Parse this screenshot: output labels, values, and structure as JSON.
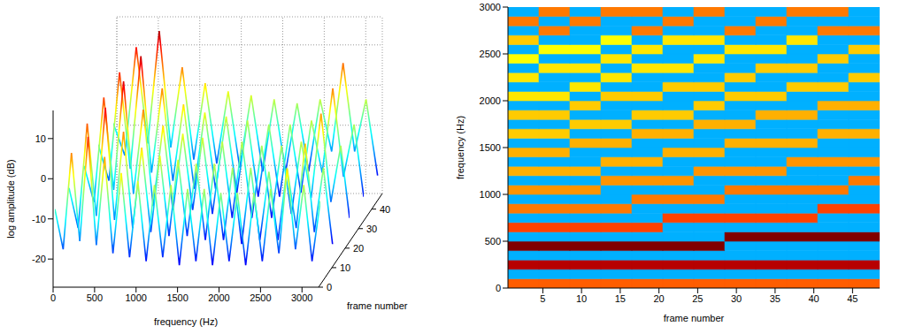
{
  "chart_data": [
    {
      "type": "waterfall",
      "xlabel": "frequency (Hz)",
      "ylabel": "log amplitude (dB)",
      "zlabel": "frame number",
      "xlim": [
        0,
        3200
      ],
      "xticks": [
        0,
        500,
        1000,
        1500,
        2000,
        2500,
        3000
      ],
      "ylim": [
        -27,
        17
      ],
      "yticks": [
        -20,
        -10,
        0,
        10
      ],
      "zlim": [
        0,
        48
      ],
      "zticks": [
        0,
        10,
        20,
        30,
        40
      ],
      "grid": true,
      "series": [
        {
          "frame": 1,
          "x": [
            0,
            100,
            200,
            300,
            400,
            500,
            600,
            700,
            800,
            900,
            1000,
            1100,
            1200,
            1300,
            1400,
            1500,
            1600,
            1700,
            1800,
            1900,
            2000,
            2100,
            2200,
            2300,
            2400,
            2500,
            2600,
            2700,
            2800,
            2900,
            3000,
            3100,
            3200
          ],
          "values": [
            -8,
            -18,
            6,
            -16,
            10,
            -17,
            5,
            -19,
            1,
            -20,
            -1,
            -21,
            -2,
            -20,
            -2,
            -22,
            -3,
            -21,
            -3,
            -22,
            -4,
            -21,
            -4,
            -22,
            -4,
            -21,
            -3,
            -19,
            2,
            -18,
            -2,
            -21,
            -6
          ]
        },
        {
          "frame": 12,
          "x": [
            0,
            110,
            219,
            329,
            438,
            548,
            657,
            767,
            876,
            986,
            1095,
            1205,
            1314,
            1424,
            1533,
            1643,
            1752,
            1862,
            1971,
            2081,
            2190,
            2300,
            2409,
            2519,
            2628,
            2738,
            2847,
            2957,
            3066,
            3176
          ],
          "values": [
            -8,
            -18,
            8,
            -15,
            12,
            -16,
            6,
            -18,
            2,
            -19,
            0,
            -20,
            -1,
            -20,
            -2,
            -21,
            -2,
            -21,
            -3,
            -22,
            -3,
            -21,
            -4,
            -21,
            -3,
            -18,
            3,
            -19,
            -3,
            -22
          ]
        },
        {
          "frame": 23,
          "x": [
            0,
            119,
            238,
            357,
            476,
            595,
            714,
            833,
            952,
            1071,
            1190,
            1309,
            1428,
            1547,
            1666,
            1785,
            1904,
            2023,
            2142,
            2261,
            2380,
            2499,
            2618,
            2737,
            2856,
            2975,
            3094,
            3200
          ],
          "values": [
            -8,
            -17,
            9,
            -14,
            13,
            -15,
            6,
            -18,
            2,
            -19,
            0,
            -19,
            -1,
            -20,
            -2,
            -21,
            -2,
            -21,
            -3,
            -21,
            -3,
            -20,
            -2,
            -16,
            5,
            -17,
            -3,
            -21
          ]
        },
        {
          "frame": 34,
          "x": [
            0,
            129,
            257,
            386,
            514,
            643,
            771,
            900,
            1028,
            1157,
            1285,
            1414,
            1542,
            1671,
            1799,
            1928,
            2056,
            2185,
            2313,
            2442,
            2570,
            2699,
            2827,
            2956,
            3084,
            3200
          ],
          "values": [
            -8,
            -17,
            10,
            -14,
            14,
            -15,
            6,
            -17,
            2,
            -19,
            0,
            -19,
            -1,
            -20,
            -2,
            -21,
            -3,
            -21,
            -3,
            -20,
            -2,
            -15,
            6,
            -16,
            -3,
            -21
          ]
        },
        {
          "frame": 45,
          "x": [
            0,
            139,
            277,
            416,
            554,
            693,
            831,
            970,
            1108,
            1247,
            1385,
            1524,
            1662,
            1801,
            1939,
            2078,
            2216,
            2355,
            2493,
            2632,
            2770,
            2909,
            3047,
            3186
          ],
          "values": [
            -8,
            -16,
            11,
            -13,
            15,
            -14,
            6,
            -17,
            2,
            -18,
            0,
            -19,
            -1,
            -20,
            -2,
            -20,
            -3,
            -20,
            -2,
            -15,
            7,
            -15,
            -2,
            -21
          ]
        }
      ]
    },
    {
      "type": "heatmap",
      "xlabel": "frame number",
      "ylabel": "frequency (Hz)",
      "xlim": [
        0.5,
        48.5
      ],
      "xticks": [
        5,
        10,
        15,
        20,
        25,
        30,
        35,
        40,
        45
      ],
      "ylim": [
        0,
        3000
      ],
      "yticks": [
        0,
        500,
        1000,
        1500,
        2000,
        2500,
        3000
      ],
      "x_edges": [
        0.5,
        4.5,
        8.5,
        12.5,
        16.5,
        20.5,
        24.5,
        28.5,
        32.5,
        36.5,
        40.5,
        44.5,
        48.5
      ],
      "y_edges": [
        0,
        100,
        200,
        300,
        400,
        500,
        600,
        700,
        800,
        900,
        1000,
        1100,
        1200,
        1300,
        1400,
        1500,
        1600,
        1700,
        1800,
        1900,
        2000,
        2100,
        2200,
        2300,
        2400,
        2500,
        2600,
        2700,
        2800,
        2900,
        3000
      ],
      "clim": [
        -25,
        12
      ],
      "z": [
        [
          4,
          4,
          4,
          4,
          4,
          4,
          4,
          4,
          4,
          4,
          4,
          4
        ],
        [
          -14,
          -14,
          -14,
          -14,
          -14,
          -14,
          -14,
          -14,
          -14,
          -14,
          -14,
          -14
        ],
        [
          10,
          10,
          10,
          10,
          10,
          10,
          10,
          10,
          10,
          10,
          10,
          10
        ],
        [
          -14,
          -14,
          -14,
          -14,
          -14,
          -14,
          -14,
          -14,
          -14,
          -14,
          -14,
          -14
        ],
        [
          12,
          12,
          12,
          12,
          12,
          12,
          12,
          -14,
          -14,
          -14,
          -14,
          -14
        ],
        [
          -14,
          -14,
          -14,
          -14,
          -14,
          -14,
          -14,
          12,
          12,
          12,
          12,
          12
        ],
        [
          5,
          5,
          5,
          5,
          5,
          -14,
          -14,
          -14,
          -14,
          -14,
          -14,
          -14
        ],
        [
          -14,
          -14,
          -14,
          -14,
          -14,
          5,
          5,
          5,
          5,
          5,
          -14,
          -14
        ],
        [
          3,
          3,
          3,
          3,
          -14,
          -14,
          -14,
          -14,
          -14,
          -14,
          5,
          5
        ],
        [
          -14,
          -14,
          -14,
          -14,
          3,
          3,
          3,
          -14,
          -14,
          -14,
          -14,
          -14
        ],
        [
          2,
          2,
          2,
          -14,
          -14,
          -14,
          -14,
          3,
          3,
          3,
          3,
          -14
        ],
        [
          -14,
          -14,
          -14,
          2,
          2,
          2,
          -14,
          -14,
          -14,
          -14,
          -14,
          3
        ],
        [
          1,
          1,
          1,
          -14,
          -14,
          -14,
          2,
          2,
          2,
          -14,
          -14,
          -14
        ],
        [
          -14,
          -14,
          -14,
          1,
          1,
          -14,
          -14,
          -14,
          -14,
          2,
          2,
          2
        ],
        [
          1,
          1,
          -14,
          -14,
          -14,
          1,
          1,
          -14,
          -14,
          -14,
          -14,
          -14
        ],
        [
          -14,
          -14,
          1,
          1,
          -14,
          -14,
          -14,
          1,
          1,
          1,
          -14,
          -14
        ],
        [
          0,
          0,
          -14,
          -14,
          1,
          1,
          -14,
          -14,
          -14,
          -14,
          1,
          1
        ],
        [
          -14,
          -14,
          0,
          0,
          -14,
          -14,
          1,
          1,
          -14,
          -14,
          -14,
          -14
        ],
        [
          0,
          0,
          -14,
          -14,
          0,
          0,
          -14,
          -14,
          1,
          1,
          -14,
          -14
        ],
        [
          -14,
          -14,
          0,
          -14,
          -14,
          -14,
          0,
          -14,
          -14,
          -14,
          1,
          1
        ],
        [
          -1,
          -1,
          -14,
          0,
          0,
          -14,
          -14,
          0,
          0,
          -14,
          -14,
          -14
        ],
        [
          -14,
          -14,
          -1,
          -14,
          -14,
          0,
          0,
          -14,
          -14,
          0,
          0,
          -14
        ],
        [
          -1,
          -14,
          -14,
          -1,
          -14,
          -14,
          -14,
          0,
          -14,
          -14,
          -14,
          0
        ],
        [
          -14,
          -1,
          -1,
          -14,
          -1,
          -1,
          -14,
          -14,
          0,
          0,
          -14,
          -14
        ],
        [
          -2,
          -14,
          -14,
          -1,
          -14,
          -14,
          -1,
          -14,
          -14,
          -14,
          0,
          -14
        ],
        [
          -14,
          -2,
          -2,
          -14,
          -1,
          -14,
          -14,
          -1,
          -1,
          -14,
          -14,
          0
        ],
        [
          0,
          -14,
          -14,
          -2,
          -14,
          -1,
          -1,
          -14,
          -14,
          -1,
          -14,
          -14
        ],
        [
          -14,
          3,
          -14,
          -14,
          3,
          -14,
          -14,
          3,
          -14,
          -14,
          3,
          3
        ],
        [
          3,
          -14,
          3,
          -14,
          -14,
          3,
          -14,
          -14,
          3,
          -14,
          -14,
          -14
        ],
        [
          -14,
          3,
          -14,
          3,
          3,
          -14,
          3,
          -14,
          -14,
          3,
          3,
          -14
        ]
      ]
    }
  ]
}
